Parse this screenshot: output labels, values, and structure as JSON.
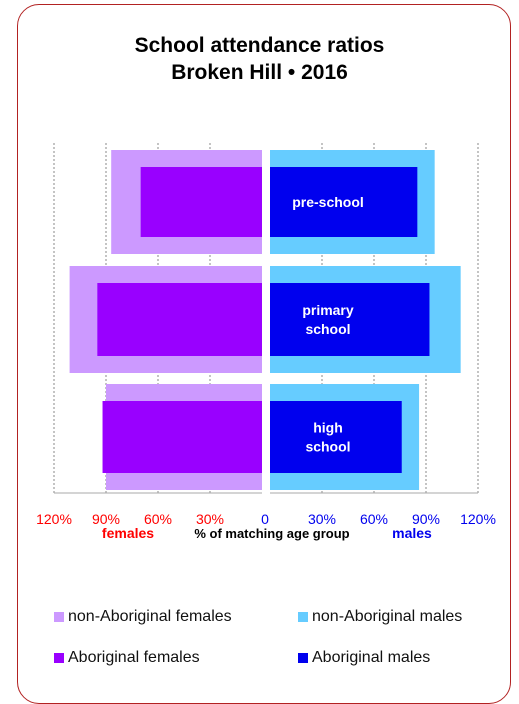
{
  "chart_data": {
    "type": "bar",
    "orientation": "horizontal-diverging",
    "title": "School attendance ratios",
    "subtitle": "Broken Hill • 2016",
    "categories": [
      "pre-school",
      "primary school",
      "high school"
    ],
    "category_lines": [
      [
        "pre-school"
      ],
      [
        "primary",
        "school"
      ],
      [
        "high",
        "school"
      ]
    ],
    "series": [
      {
        "name": "non-Aboriginal females",
        "side": "left",
        "color": "#cc99ff",
        "values": [
          87,
          111,
          90
        ]
      },
      {
        "name": "Aboriginal females",
        "side": "left",
        "color": "#9900ff",
        "values": [
          70,
          95,
          92
        ]
      },
      {
        "name": "non-Aboriginal males",
        "side": "right",
        "color": "#66ccff",
        "values": [
          95,
          110,
          86
        ]
      },
      {
        "name": "Aboriginal males",
        "side": "right",
        "color": "#0000ee",
        "values": [
          85,
          92,
          76
        ]
      }
    ],
    "x_ticks_left": [
      "120%",
      "90%",
      "60%",
      "30%"
    ],
    "x_ticks_right": [
      "0",
      "30%",
      "60%",
      "90%",
      "120%"
    ],
    "xlim": [
      0,
      120
    ],
    "grid": true,
    "xlabel_left": "females",
    "xlabel_center": "% of matching age group",
    "xlabel_right": "males",
    "colors": {
      "female_axis": "#ff0000",
      "male_axis": "#0000ee",
      "frame": "#b22222",
      "grid": "#888888"
    }
  },
  "legend": [
    {
      "label": "non-Aboriginal females",
      "color": "#cc99ff"
    },
    {
      "label": "non-Aboriginal males",
      "color": "#66ccff"
    },
    {
      "label": "Aboriginal females",
      "color": "#9900ff"
    },
    {
      "label": "Aboriginal males",
      "color": "#0000ee"
    }
  ]
}
